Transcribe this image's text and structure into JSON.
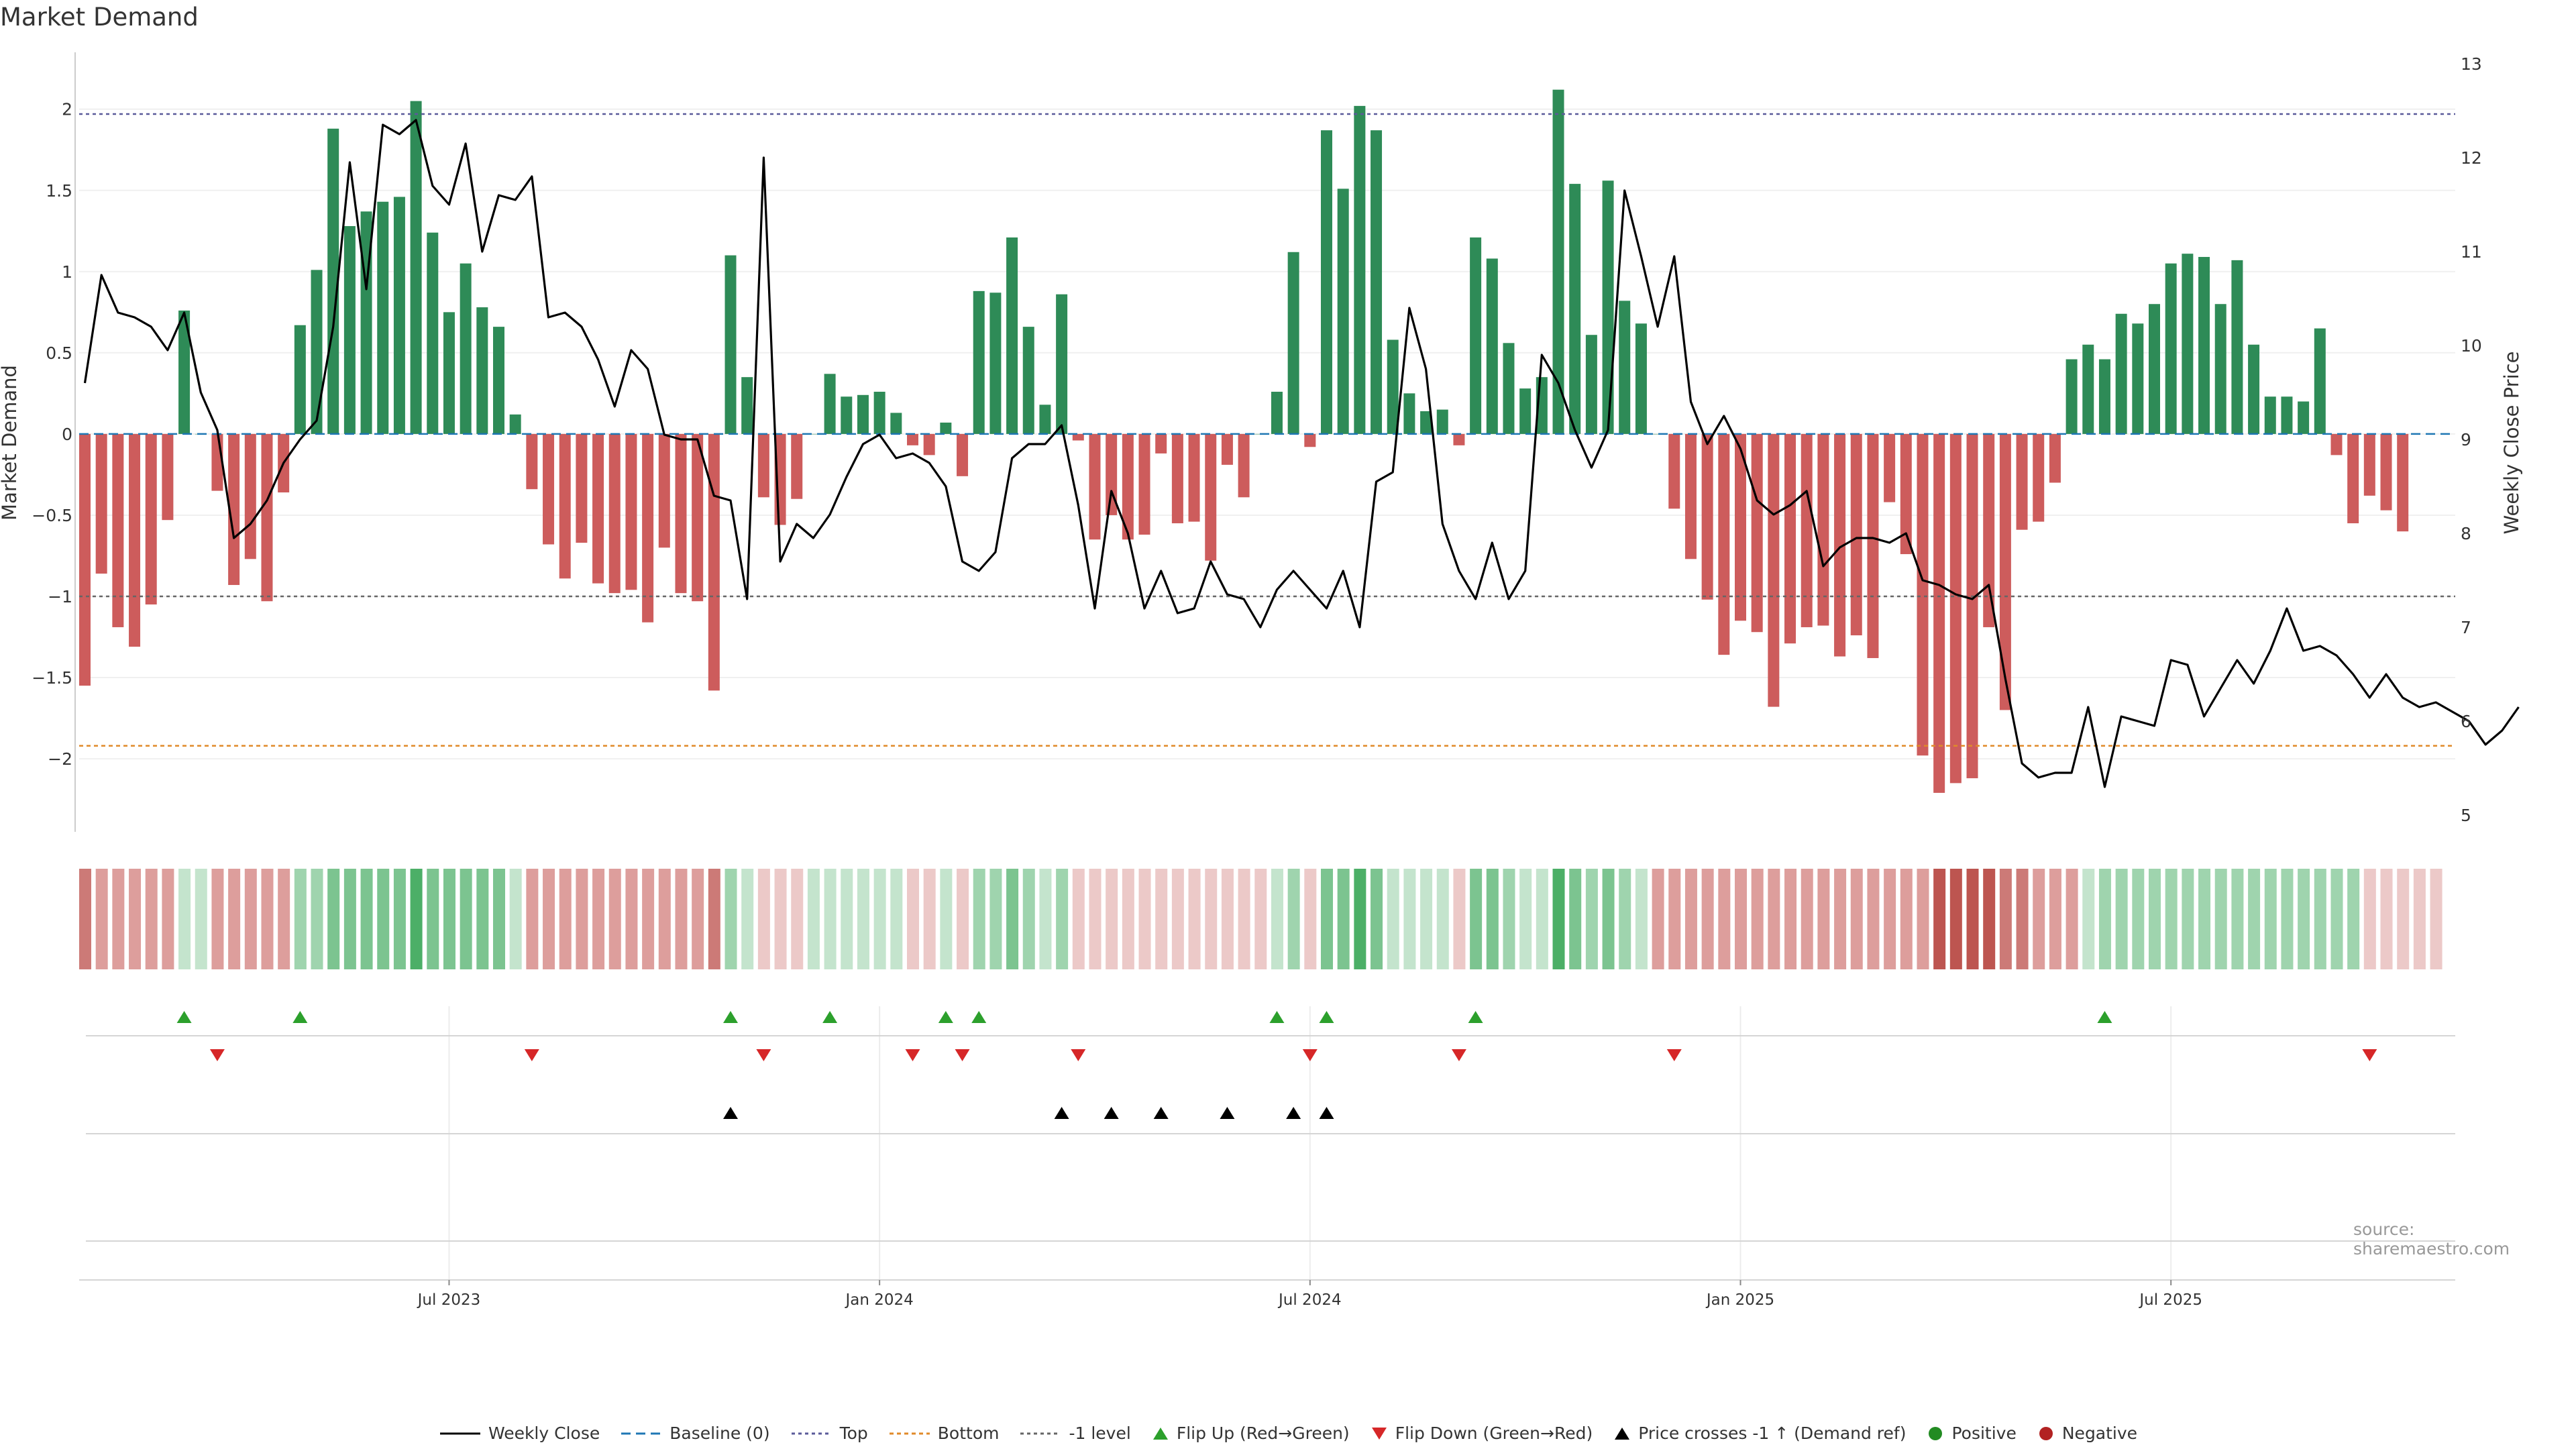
{
  "chart_data": {
    "type": "bar+line",
    "title": "Market Demand",
    "ylabel_left": "Market Demand",
    "ylabel_right": "Weekly Close Price",
    "ylim_left": [
      -2.45,
      2.35
    ],
    "ylim_right": [
      5,
      13
    ],
    "left_ticks": [
      2,
      1.5,
      1,
      0.5,
      0,
      -0.5,
      -1,
      -1.5,
      -2
    ],
    "left_tick_labels": [
      "2",
      "1.5",
      "1",
      "0.5",
      "0",
      "−0.5",
      "−1",
      "−1.5",
      "−2"
    ],
    "right_ticks": [
      "13",
      "12",
      "11",
      "10",
      "9",
      "8",
      "7",
      "6",
      "5"
    ],
    "x_tick_labels": [
      "Jul 2023",
      "Jan 2024",
      "Jul 2024",
      "Jan 2025",
      "Jul 2025"
    ],
    "x_tick_weeks": [
      22,
      48,
      74,
      100,
      126
    ],
    "reference_lines": {
      "top": 1.97,
      "bottom": -1.92,
      "minus_one": -1
    },
    "demand": [
      -1.55,
      -0.86,
      -1.19,
      -1.31,
      -1.05,
      -0.53,
      0.76,
      0,
      -0.35,
      -0.93,
      -0.77,
      -1.03,
      -0.36,
      0.67,
      1.01,
      1.88,
      1.28,
      1.37,
      1.43,
      1.46,
      2.05,
      1.24,
      0.75,
      1.05,
      0.78,
      0.66,
      0.12,
      -0.34,
      -0.68,
      -0.89,
      -0.67,
      -0.92,
      -0.98,
      -0.96,
      -1.16,
      -0.7,
      -0.98,
      -1.03,
      -1.58,
      1.1,
      0.35,
      -0.39,
      -0.56,
      -0.4,
      0,
      0.37,
      0.23,
      0.24,
      0.26,
      0.13,
      -0.07,
      -0.13,
      0.07,
      -0.26,
      0.88,
      0.87,
      1.21,
      0.66,
      0.18,
      0.86,
      -0.04,
      -0.65,
      -0.5,
      -0.65,
      -0.62,
      -0.12,
      -0.55,
      -0.54,
      -0.78,
      -0.19,
      -0.39,
      0,
      0.26,
      1.12,
      -0.08,
      1.87,
      1.51,
      2.02,
      1.87,
      0.58,
      0.25,
      0.14,
      0.15,
      -0.07,
      1.21,
      1.08,
      0.56,
      0.28,
      0.35,
      2.12,
      1.54,
      0.61,
      1.56,
      0.82,
      0.68,
      0,
      -0.46,
      -0.77,
      -1.02,
      -1.36,
      -1.15,
      -1.22,
      -1.68,
      -1.29,
      -1.19,
      -1.18,
      -1.37,
      -1.24,
      -1.38,
      -0.42,
      -0.74,
      -1.98,
      -2.21,
      -2.15,
      -2.12,
      -1.19,
      -1.7,
      -0.59,
      -0.54,
      -0.3,
      0.46,
      0.55,
      0.46,
      0.74,
      0.68,
      0.8,
      1.05,
      1.11,
      1.09,
      0.8,
      1.07,
      0.55,
      0.23,
      0.23,
      0.2,
      0.65,
      -0.13,
      -0.55,
      -0.38,
      -0.47,
      -0.6
    ],
    "close": [
      9.6,
      10.75,
      10.35,
      10.3,
      10.2,
      9.95,
      10.35,
      9.5,
      9.1,
      7.95,
      8.1,
      8.35,
      8.75,
      9.0,
      9.2,
      10.2,
      11.95,
      10.6,
      12.35,
      12.25,
      12.4,
      11.7,
      11.5,
      12.15,
      11.0,
      11.6,
      11.55,
      11.8,
      10.3,
      10.35,
      10.2,
      9.85,
      9.35,
      9.95,
      9.75,
      9.05,
      9.0,
      9.0,
      8.4,
      8.35,
      7.3,
      12.0,
      7.7,
      8.1,
      7.95,
      8.2,
      8.6,
      8.95,
      9.05,
      8.8,
      8.85,
      8.75,
      8.5,
      7.7,
      7.6,
      7.8,
      8.8,
      8.95,
      8.95,
      9.15,
      8.3,
      7.2,
      8.45,
      8.0,
      7.2,
      7.6,
      7.15,
      7.2,
      7.7,
      7.35,
      7.3,
      7.0,
      7.4,
      7.6,
      7.4,
      7.2,
      7.6,
      7.0,
      8.55,
      8.65,
      10.4,
      9.75,
      8.1,
      7.6,
      7.3,
      7.9,
      7.3,
      7.6,
      9.9,
      9.6,
      9.1,
      8.7,
      9.1,
      11.65,
      10.95,
      10.2,
      10.95,
      9.4,
      8.95,
      9.25,
      8.9,
      8.35,
      8.2,
      8.3,
      8.45,
      7.65,
      7.85,
      7.95,
      7.95,
      7.9,
      8.0,
      7.5,
      7.45,
      7.35,
      7.3,
      7.45,
      6.45,
      5.55,
      5.4,
      5.45,
      5.45,
      6.15,
      5.3,
      6.05,
      6.0,
      5.95,
      6.65,
      6.6,
      6.05,
      6.35,
      6.65,
      6.4,
      6.75,
      7.2,
      6.75,
      6.8,
      6.7,
      6.5,
      6.25,
      6.5,
      6.25,
      6.15,
      6.2,
      6.1,
      6.0,
      5.75,
      5.9,
      6.15
    ],
    "shade_levels": [
      -3,
      -2,
      -2,
      -2,
      -2,
      -2,
      1,
      1,
      -2,
      -2,
      -2,
      -2,
      -2,
      2,
      2,
      3,
      3,
      3,
      3,
      3,
      4,
      3,
      3,
      3,
      3,
      3,
      1,
      -2,
      -2,
      -2,
      -2,
      -2,
      -2,
      -2,
      -2,
      -2,
      -2,
      -2,
      -3,
      2,
      1,
      -1,
      -1,
      -1,
      1,
      1,
      1,
      1,
      1,
      1,
      -1,
      -1,
      1,
      -1,
      2,
      2,
      3,
      2,
      1,
      2,
      -1,
      -1,
      -1,
      -1,
      -1,
      -1,
      -1,
      -1,
      -1,
      -1,
      -1,
      -1,
      1,
      2,
      -1,
      3,
      3,
      4,
      3,
      1,
      1,
      1,
      1,
      -1,
      3,
      3,
      2,
      1,
      1,
      4,
      3,
      2,
      3,
      2,
      1,
      -2,
      -2,
      -2,
      -2,
      -2,
      -2,
      -2,
      -2,
      -2,
      -2,
      -2,
      -2,
      -2,
      -2,
      -2,
      -2,
      -2,
      -4,
      -4,
      -4,
      -4,
      -3,
      -3,
      -2,
      -2,
      -2,
      1,
      2,
      2,
      2,
      2,
      2,
      2,
      2,
      2,
      2,
      2,
      2,
      2,
      2,
      2,
      2,
      2,
      -1,
      -1,
      -1,
      -1,
      -1
    ],
    "flip_up_weeks": [
      6,
      13,
      39,
      45,
      52,
      54,
      72,
      75,
      84,
      122
    ],
    "flip_down_weeks": [
      8,
      27,
      41,
      50,
      53,
      60,
      74,
      83,
      96,
      138
    ],
    "price_cross_weeks": [
      39,
      59,
      62,
      65,
      69,
      73,
      75
    ],
    "colors": {
      "positive": "#2e8b57",
      "negative": "#cd5c5c",
      "close_line": "#000000",
      "baseline": "#1f77b4",
      "top_line": "#5a5a9a",
      "bottom_line": "#e08a2a",
      "minus_one_line": "#666666",
      "flip_up": "#2ca02c",
      "flip_down": "#d62728",
      "price_cross": "#000000",
      "legend_positive": "#228b22",
      "legend_negative": "#b22222"
    },
    "legend": [
      {
        "key": "close",
        "label": "Weekly Close"
      },
      {
        "key": "baseline",
        "label": "Baseline (0)"
      },
      {
        "key": "top",
        "label": "Top"
      },
      {
        "key": "bottom",
        "label": "Bottom"
      },
      {
        "key": "minus_one",
        "label": "-1 level"
      },
      {
        "key": "flip_up",
        "label": "Flip Up (Red→Green)"
      },
      {
        "key": "flip_down",
        "label": "Flip Down (Green→Red)"
      },
      {
        "key": "price_cross",
        "label": "Price crosses -1 ↑ (Demand ref)"
      },
      {
        "key": "positive",
        "label": "Positive"
      },
      {
        "key": "negative",
        "label": "Negative"
      }
    ],
    "source": "source: sharemaestro.com"
  }
}
